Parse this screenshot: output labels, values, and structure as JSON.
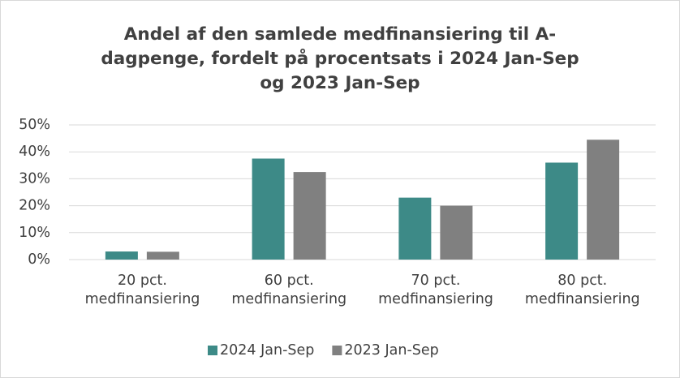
{
  "chart_data": {
    "type": "bar",
    "title": [
      "Andel af den samlede medfinansiering til A-",
      "dagpenge, fordelt på procentsats i 2024 Jan-Sep",
      "og 2023 Jan-Sep"
    ],
    "categories": [
      "20 pct. medfinansiering",
      "60 pct. medfinansiering",
      "70 pct. medfinansiering",
      "80 pct. medfinansiering"
    ],
    "series": [
      {
        "name": "2024 Jan-Sep",
        "color": "#3d8a87",
        "values": [
          3,
          37.5,
          23,
          36
        ]
      },
      {
        "name": "2023 Jan-Sep",
        "color": "#808080",
        "values": [
          2.9,
          32.5,
          20,
          44.5
        ]
      }
    ],
    "ylim": [
      0,
      50
    ],
    "yticks": [
      {
        "value": 0,
        "label": "0%"
      },
      {
        "value": 10,
        "label": "10%"
      },
      {
        "value": 20,
        "label": "20%"
      },
      {
        "value": 30,
        "label": "30%"
      },
      {
        "value": 40,
        "label": "40%"
      },
      {
        "value": 50,
        "label": "50%"
      }
    ],
    "grid": true,
    "legend": "bottom"
  }
}
